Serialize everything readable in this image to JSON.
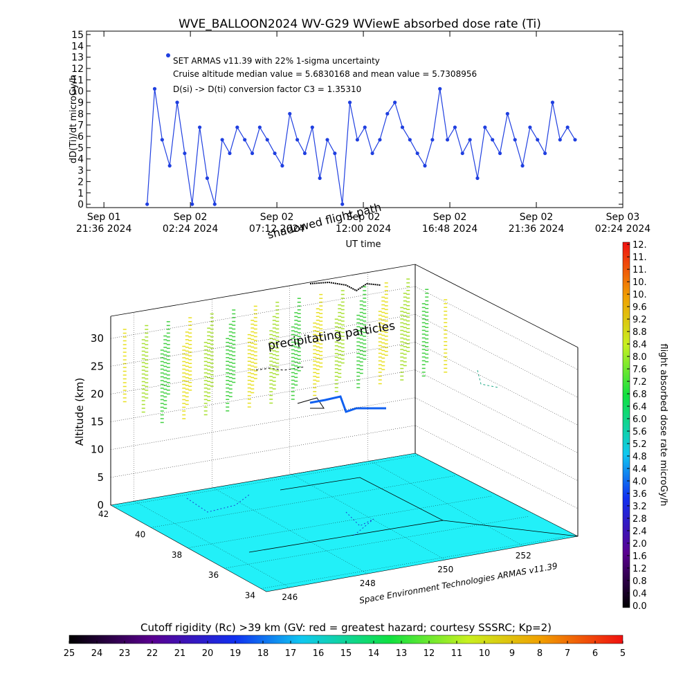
{
  "chart_data": [
    {
      "type": "line",
      "title": "WVE_BALLOON2024 WV-G29 WViewE absorbed dose rate (Ti)",
      "y_label": "dD(Ti)/dt microGy/h",
      "x_label": "UT time",
      "annotations": [
        "SET ARMAS v11.39 with 22% 1-sigma uncertainty",
        "Cruise altitude median value = 5.6830168 and mean value = 5.7308956",
        "D(si) -> D(ti) conversion factor C3 = 1.35310"
      ],
      "x": [
        "2024-09-02T00:00",
        "2024-09-02T00:25",
        "2024-09-02T00:50",
        "2024-09-02T01:15",
        "2024-09-02T01:40",
        "2024-09-02T02:05",
        "2024-09-02T02:30",
        "2024-09-02T02:55",
        "2024-09-02T03:20",
        "2024-09-02T03:45",
        "2024-09-02T04:10",
        "2024-09-02T04:35",
        "2024-09-02T05:00",
        "2024-09-02T05:25",
        "2024-09-02T05:50",
        "2024-09-02T06:15",
        "2024-09-02T06:40",
        "2024-09-02T07:05",
        "2024-09-02T07:30",
        "2024-09-02T07:55",
        "2024-09-02T08:20",
        "2024-09-02T08:45",
        "2024-09-02T09:10",
        "2024-09-02T09:35",
        "2024-09-02T10:00",
        "2024-09-02T10:25",
        "2024-09-02T10:50",
        "2024-09-02T11:15",
        "2024-09-02T11:40",
        "2024-09-02T12:05",
        "2024-09-02T12:30",
        "2024-09-02T12:55",
        "2024-09-02T13:20",
        "2024-09-02T13:45",
        "2024-09-02T14:10",
        "2024-09-02T14:35",
        "2024-09-02T15:00",
        "2024-09-02T15:25",
        "2024-09-02T15:50",
        "2024-09-02T16:15",
        "2024-09-02T16:40",
        "2024-09-02T17:05",
        "2024-09-02T17:30",
        "2024-09-02T17:55",
        "2024-09-02T18:20",
        "2024-09-02T18:45",
        "2024-09-02T19:10",
        "2024-09-02T19:35",
        "2024-09-02T20:00",
        "2024-09-02T20:25",
        "2024-09-02T20:50",
        "2024-09-02T21:15",
        "2024-09-02T21:40",
        "2024-09-02T22:05",
        "2024-09-02T22:30",
        "2024-09-02T22:55",
        "2024-09-02T23:20",
        "2024-09-02T23:45"
      ],
      "series": [
        {
          "color": "#1f3fe0",
          "values": [
            0,
            10.2,
            5.7,
            3.4,
            9,
            4.5,
            0,
            6.8,
            2.3,
            0,
            5.7,
            4.5,
            6.8,
            5.7,
            4.5,
            6.8,
            5.7,
            4.5,
            3.4,
            8,
            5.7,
            4.5,
            6.8,
            2.3,
            5.7,
            4.5,
            0,
            9,
            5.7,
            6.8,
            4.5,
            5.7,
            8,
            9,
            6.8,
            5.7,
            4.5,
            3.4,
            5.7,
            10.2,
            5.7,
            6.8,
            4.5,
            5.7,
            2.3,
            6.8,
            5.7,
            4.5,
            8,
            5.7,
            3.4,
            6.8,
            5.7,
            4.5,
            9,
            5.7,
            6.8,
            5.7
          ]
        }
      ],
      "xlim": [
        "2024-09-01T20:38",
        "2024-09-03T02:24"
      ],
      "xticks": [
        {
          "value": "2024-09-01T21:36",
          "label": [
            "Sep 01",
            "21:36 2024"
          ]
        },
        {
          "value": "2024-09-02T02:24",
          "label": [
            "Sep 02",
            "02:24 2024"
          ]
        },
        {
          "value": "2024-09-02T07:12",
          "label": [
            "Sep 02",
            "07:12 2024"
          ]
        },
        {
          "value": "2024-09-02T12:00",
          "label": [
            "Sep 02",
            "12:00 2024"
          ]
        },
        {
          "value": "2024-09-02T16:48",
          "label": [
            "Sep 02",
            "16:48 2024"
          ]
        },
        {
          "value": "2024-09-02T21:36",
          "label": [
            "Sep 02",
            "21:36 2024"
          ]
        },
        {
          "value": "2024-09-03T02:24",
          "label": [
            "Sep 03",
            "02:24 2024"
          ]
        }
      ],
      "ylim": [
        -0.3,
        15.3
      ],
      "yticks": [
        0,
        1,
        2,
        3,
        4,
        5,
        6,
        7,
        8,
        9,
        10,
        11,
        12,
        13,
        14,
        15
      ]
    },
    {
      "type": "3d-map",
      "z_label": "Altitude (km)",
      "annotations": [
        "precipitating particles",
        "shadowed flight path"
      ],
      "credit": "Space Environment Technologies ARMAS v11.39",
      "zlim": [
        0,
        34
      ],
      "zticks": [
        0,
        5,
        10,
        15,
        20,
        25,
        30
      ],
      "latlim": [
        33.7,
        42.2
      ],
      "latticks": [
        34,
        36,
        38,
        40,
        42
      ],
      "lonlim": [
        245.4,
        253.4
      ],
      "lonticks": [
        246,
        248,
        250,
        252
      ]
    },
    {
      "type": "colorbar",
      "label": "flight absorbed dose rate microGy/h",
      "lim": [
        -0.07,
        11.67
      ],
      "ticks": [
        {
          "value": 0,
          "label": "0.0"
        },
        0.4,
        0.8,
        1.2,
        1.6,
        {
          "value": 2,
          "label": "2.0"
        },
        2.4,
        2.8,
        3.2,
        3.6,
        {
          "value": 4,
          "label": "4.0"
        },
        4.4,
        4.8,
        5.2,
        5.6,
        {
          "value": 6,
          "label": "6.0"
        },
        6.4,
        6.8,
        7.2,
        7.6,
        {
          "value": 8,
          "label": "8.0"
        },
        8.4,
        8.8,
        9.2,
        9.6,
        {
          "value": 10,
          "label": "10."
        },
        {
          "value": 10.4,
          "label": "10."
        },
        {
          "value": 10.8,
          "label": "11."
        },
        {
          "value": 11.2,
          "label": "11."
        },
        {
          "value": 11.6,
          "label": "12."
        }
      ]
    },
    {
      "type": "colorbar",
      "label": "Cutoff rigidity (Rc) >39 km (GV: red = greatest hazard; courtesy SSSRC; Kp=2)",
      "lim": [
        25,
        5
      ],
      "ticks": [
        25,
        24,
        23,
        22,
        21,
        20,
        19,
        18,
        17,
        16,
        15,
        14,
        13,
        12,
        11,
        10,
        9,
        8,
        7,
        6,
        5
      ]
    }
  ]
}
